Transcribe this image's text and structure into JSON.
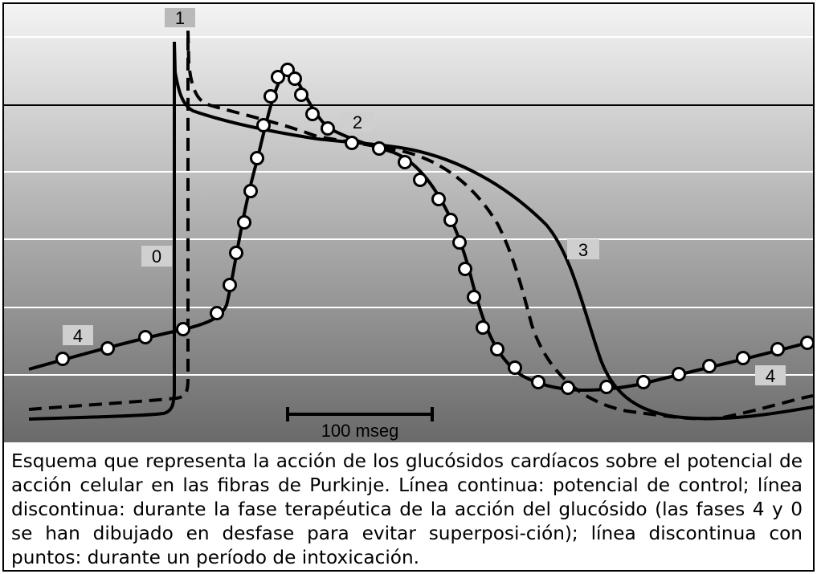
{
  "figure": {
    "phase_labels": {
      "p0": "0",
      "p1": "1",
      "p2": "2",
      "p3": "3",
      "p4_left": "4",
      "p4_right": "4"
    },
    "scale_bar_label": "100 mseg"
  },
  "caption": {
    "text": "Esquema que representa la acción de los glucósidos cardíacos sobre el potencial de acción celular en las fibras de Purkinje. Línea continua: potencial de control; línea discontinua: durante la fase terapéutica de la acción del glucósido (las fases 4 y 0 se han dibujado en desfase para evitar superposi-ción); línea discontinua con puntos: durante un período de intoxicación."
  }
}
